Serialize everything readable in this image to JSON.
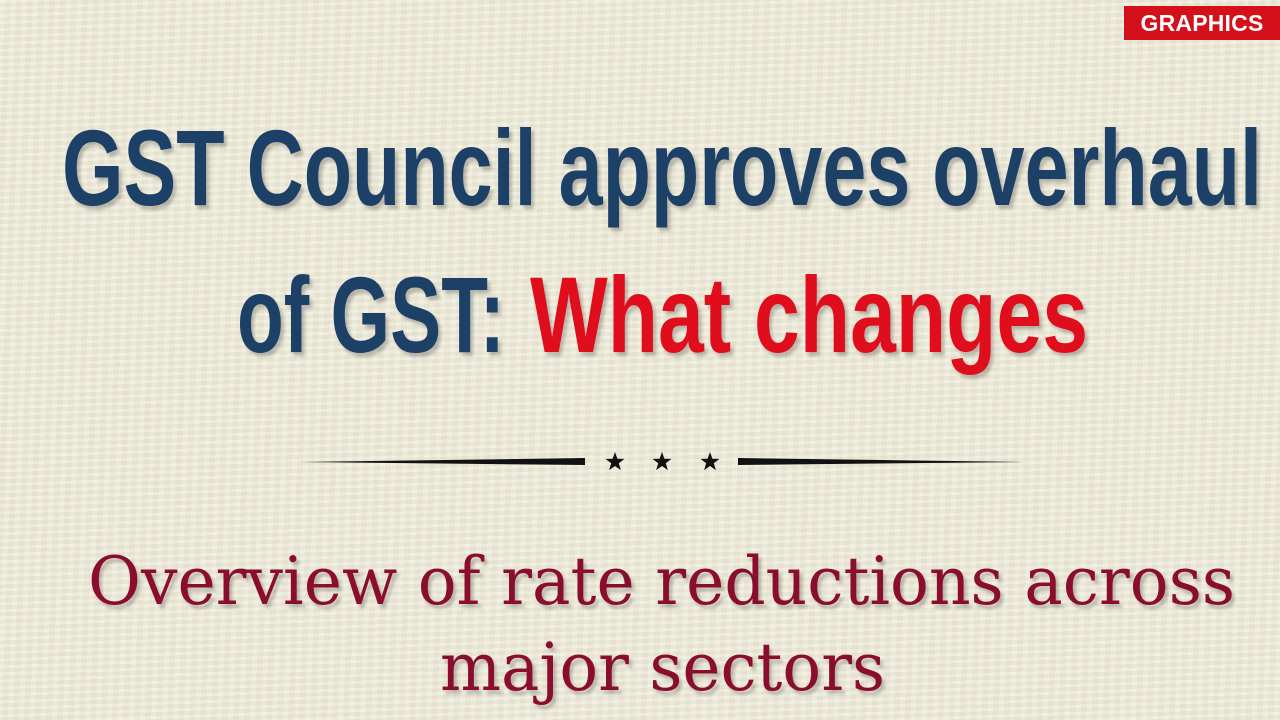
{
  "badge": {
    "label": "GRAPHICS",
    "color": "#d4101a"
  },
  "headline": {
    "line1": "GST Council approves overhaul",
    "line2_prefix": "of GST:",
    "line2_highlight": "What changes",
    "primary_color": "#1f3f66",
    "highlight_color": "#e0101e"
  },
  "divider": {
    "icon": "three-stars"
  },
  "subtitle": {
    "line1": "Overview of rate reductions across",
    "line2": "major sectors",
    "color": "#8a0f2e"
  }
}
